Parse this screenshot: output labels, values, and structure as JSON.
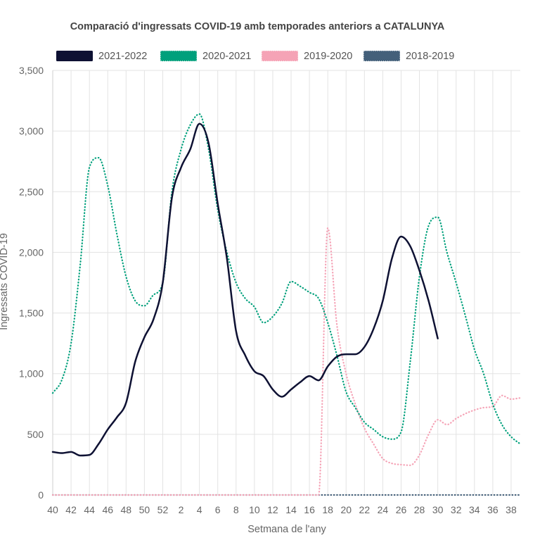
{
  "chart_data": {
    "type": "line",
    "title": "Comparació d'ingressats COVID-19 amb temporades anteriors a CATALUNYA",
    "xlabel": "Setmana de l'any",
    "ylabel": "Ingressats COVID-19",
    "ylim": [
      0,
      3500
    ],
    "yticks": [
      0,
      500,
      1000,
      1500,
      2000,
      2500,
      3000,
      3500
    ],
    "ytick_labels": [
      "0",
      "500",
      "1,000",
      "1,500",
      "2,000",
      "2,500",
      "3,000",
      "3,500"
    ],
    "x": [
      "40",
      "41",
      "42",
      "43",
      "44",
      "45",
      "46",
      "47",
      "48",
      "49",
      "50",
      "51",
      "52",
      "1",
      "2",
      "3",
      "4",
      "5",
      "6",
      "7",
      "8",
      "9",
      "10",
      "11",
      "12",
      "13",
      "14",
      "15",
      "16",
      "17",
      "18",
      "19",
      "20",
      "21",
      "22",
      "23",
      "24",
      "25",
      "26",
      "27",
      "28",
      "29",
      "30",
      "31",
      "32",
      "33",
      "34",
      "35",
      "36",
      "37",
      "38",
      "39"
    ],
    "xtick_labels": [
      "40",
      "42",
      "44",
      "46",
      "48",
      "50",
      "52",
      "2",
      "4",
      "6",
      "8",
      "10",
      "12",
      "14",
      "16",
      "18",
      "20",
      "22",
      "24",
      "26",
      "28",
      "30",
      "32",
      "34",
      "36",
      "38"
    ],
    "grid": true,
    "legend_position": "top",
    "series": [
      {
        "name": "2021-2022",
        "color": "#0e1133",
        "style": "solid",
        "values": [
          355,
          345,
          355,
          325,
          330,
          420,
          540,
          640,
          760,
          1100,
          1300,
          1450,
          1750,
          2450,
          2700,
          2850,
          3060,
          2900,
          2400,
          1950,
          1350,
          1150,
          1020,
          980,
          870,
          810,
          870,
          930,
          980,
          945,
          1060,
          1140,
          1160,
          1160,
          1220,
          1370,
          1600,
          1950,
          2130,
          2050,
          1850,
          1600,
          1290,
          null,
          null,
          null,
          null,
          null,
          null,
          null,
          null,
          null
        ]
      },
      {
        "name": "2020-2021",
        "color": "#00a07c",
        "style": "dotted",
        "values": [
          840,
          950,
          1250,
          1900,
          2700,
          2780,
          2550,
          2150,
          1800,
          1600,
          1560,
          1650,
          1750,
          2500,
          2850,
          3050,
          3140,
          2850,
          2350,
          2000,
          1750,
          1620,
          1550,
          1420,
          1470,
          1580,
          1760,
          1720,
          1670,
          1620,
          1420,
          1150,
          850,
          720,
          600,
          540,
          480,
          460,
          520,
          1100,
          1800,
          2220,
          2290,
          2000,
          1750,
          1480,
          1200,
          1000,
          750,
          580,
          480,
          420
        ]
      },
      {
        "name": "2019-2020",
        "color": "#f5a3b6",
        "style": "dotted",
        "values": [
          0,
          0,
          0,
          0,
          0,
          0,
          0,
          0,
          0,
          0,
          0,
          0,
          0,
          0,
          0,
          0,
          0,
          0,
          0,
          0,
          0,
          0,
          0,
          0,
          0,
          0,
          0,
          0,
          0,
          0,
          2200,
          1400,
          1000,
          750,
          550,
          420,
          300,
          260,
          250,
          245,
          330,
          500,
          620,
          580,
          630,
          670,
          700,
          720,
          730,
          820,
          790,
          800
        ]
      },
      {
        "name": "2018-2019",
        "color": "#44607a",
        "style": "dotted",
        "values": [
          0,
          0,
          0,
          0,
          0,
          0,
          0,
          0,
          0,
          0,
          0,
          0,
          0,
          0,
          0,
          0,
          0,
          0,
          0,
          0,
          0,
          0,
          0,
          0,
          0,
          0,
          0,
          0,
          0,
          0,
          0,
          0,
          0,
          0,
          0,
          0,
          0,
          0,
          0,
          0,
          0,
          0,
          0,
          0,
          0,
          0,
          0,
          0,
          0,
          0,
          0,
          0
        ]
      }
    ]
  }
}
